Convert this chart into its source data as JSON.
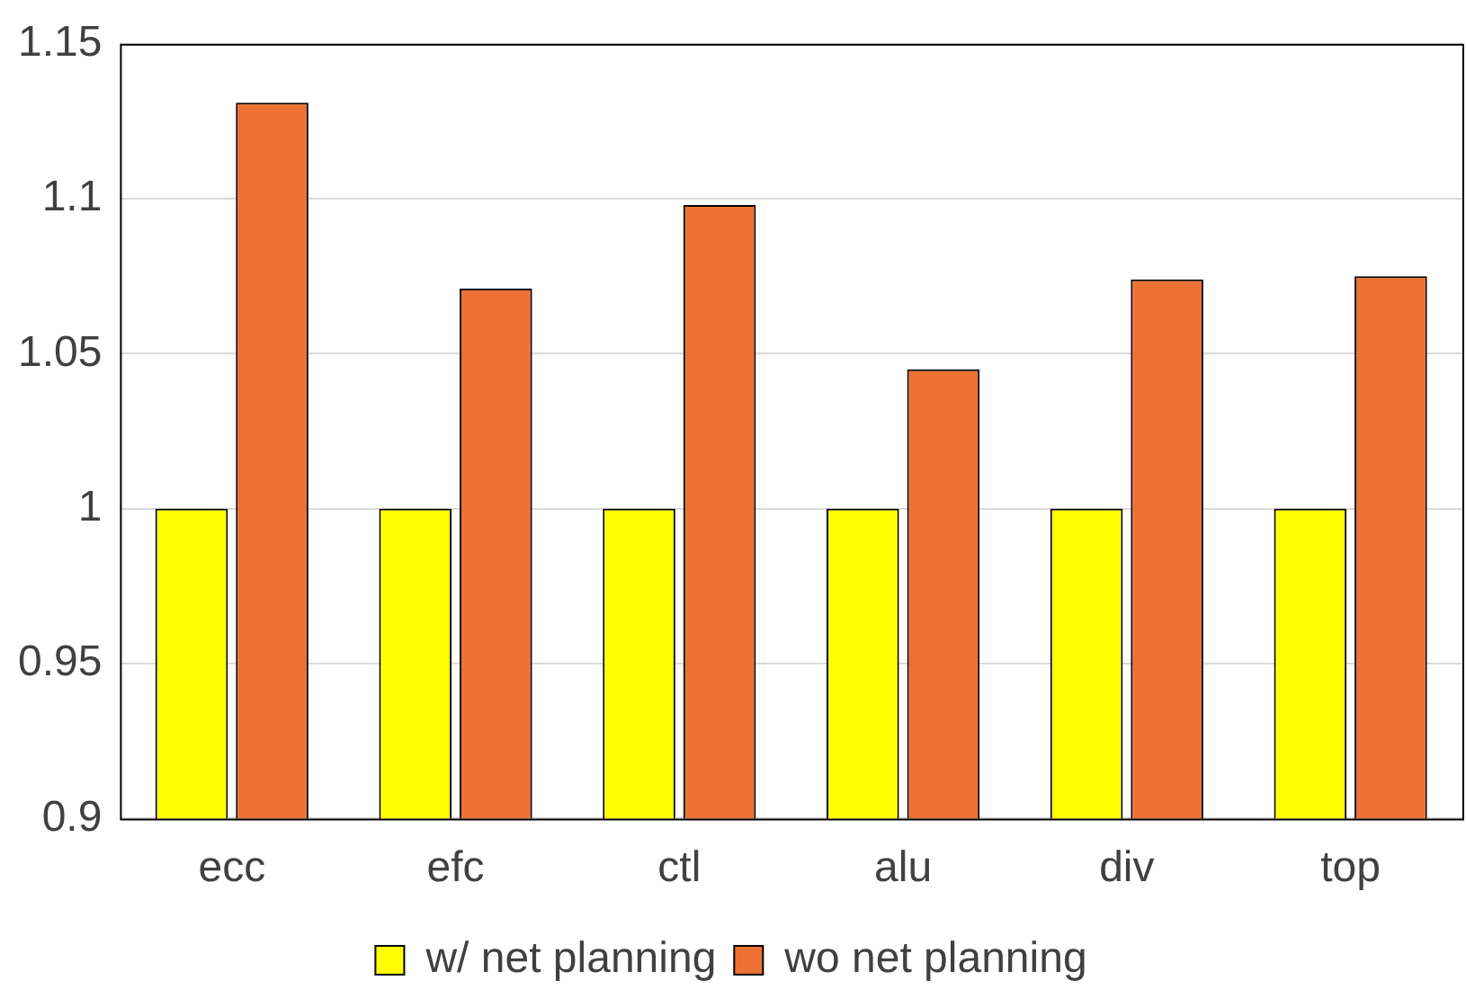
{
  "chart_data": {
    "type": "bar",
    "categories": [
      "ecc",
      "efc",
      "ctl",
      "alu",
      "div",
      "top"
    ],
    "series": [
      {
        "name": "w/ net planning",
        "color": "#ffff00",
        "values": [
          1,
          1,
          1,
          1,
          1,
          1
        ]
      },
      {
        "name": "wo net planning",
        "color": "#ed7133",
        "values": [
          1.131,
          1.071,
          1.098,
          1.045,
          1.074,
          1.075
        ]
      }
    ],
    "ylim": [
      0.9,
      1.15
    ],
    "yticks": [
      0.9,
      0.95,
      1,
      1.05,
      1.1,
      1.15
    ],
    "grid": "y",
    "legend": "bottom"
  }
}
